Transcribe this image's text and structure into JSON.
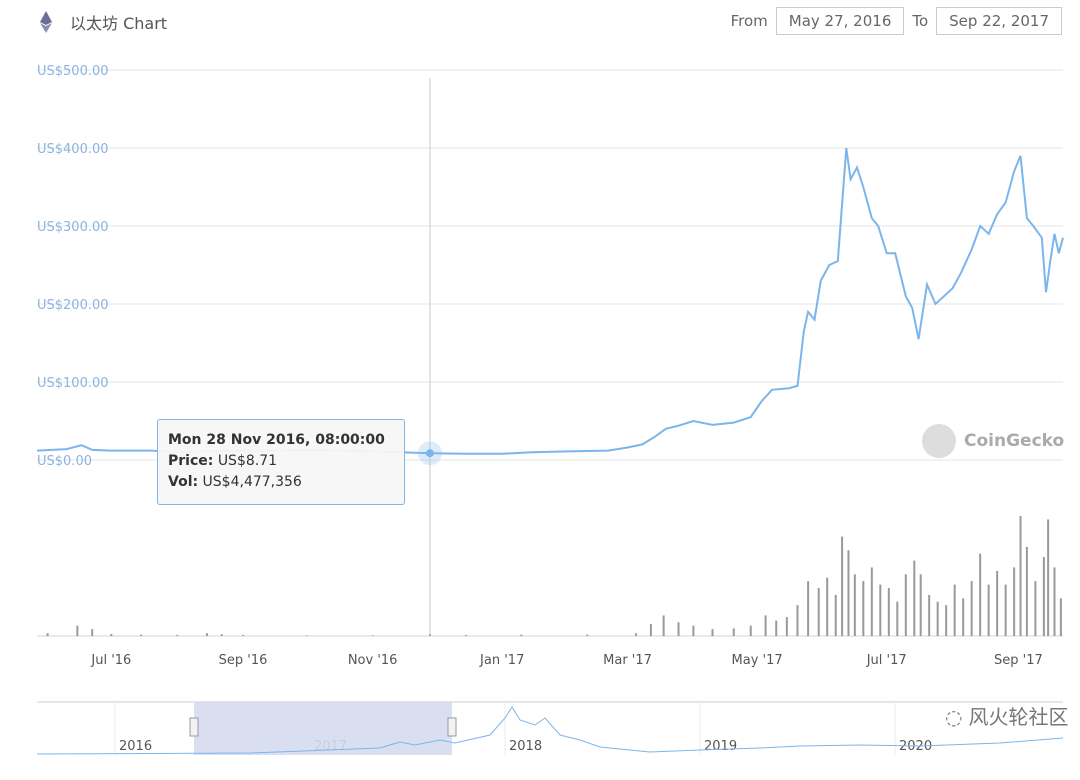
{
  "header": {
    "title": "以太坊 Chart",
    "icon": "ethereum-icon",
    "from_label": "From",
    "from_value": "May 27, 2016",
    "to_label": "To",
    "to_value": "Sep 22, 2017"
  },
  "tooltip": {
    "date": "Mon 28 Nov 2016, 08:00:00",
    "price_label": "Price:",
    "price_value": "US$8.71",
    "vol_label": "Vol:",
    "vol_value": "US$4,477,356"
  },
  "watermark": "CoinGecko",
  "wechat_watermark": "风火轮社区",
  "colors": {
    "line": "#7cb5ec",
    "volume": "#999999",
    "navigator_mask": "#d5dbee"
  },
  "chart_data": {
    "type": "line",
    "title": "",
    "y_ticks": [
      "US$0.00",
      "US$100.00",
      "US$200.00",
      "US$300.00",
      "US$400.00",
      "US$500.00"
    ],
    "ylim": [
      0,
      500
    ],
    "x_ticks": [
      [
        "2016-07-01",
        "Jul '16"
      ],
      [
        "2016-09-01",
        "Sep '16"
      ],
      [
        "2016-11-01",
        "Nov '16"
      ],
      [
        "2017-01-01",
        "Jan '17"
      ],
      [
        "2017-03-01",
        "Mar '17"
      ],
      [
        "2017-05-01",
        "May '17"
      ],
      [
        "2017-07-01",
        "Jul '17"
      ],
      [
        "2017-09-01",
        "Sep '17"
      ]
    ],
    "xlim": [
      "2016-05-27",
      "2017-09-22"
    ],
    "grid": true,
    "crosshair_date": "2016-11-28",
    "price": [
      [
        "2016-05-27",
        12
      ],
      [
        "2016-06-10",
        14
      ],
      [
        "2016-06-17",
        19
      ],
      [
        "2016-06-22",
        13
      ],
      [
        "2016-07-01",
        12
      ],
      [
        "2016-07-20",
        12
      ],
      [
        "2016-08-01",
        10
      ],
      [
        "2016-08-15",
        11
      ],
      [
        "2016-09-01",
        12
      ],
      [
        "2016-09-15",
        12
      ],
      [
        "2016-10-01",
        13
      ],
      [
        "2016-10-20",
        12
      ],
      [
        "2016-11-01",
        11
      ],
      [
        "2016-11-28",
        8.71
      ],
      [
        "2016-12-15",
        8
      ],
      [
        "2017-01-01",
        8
      ],
      [
        "2017-01-15",
        10
      ],
      [
        "2017-02-01",
        11
      ],
      [
        "2017-02-20",
        12
      ],
      [
        "2017-03-01",
        16
      ],
      [
        "2017-03-08",
        20
      ],
      [
        "2017-03-14",
        30
      ],
      [
        "2017-03-19",
        40
      ],
      [
        "2017-03-25",
        44
      ],
      [
        "2017-04-01",
        50
      ],
      [
        "2017-04-10",
        45
      ],
      [
        "2017-04-20",
        48
      ],
      [
        "2017-04-28",
        55
      ],
      [
        "2017-05-03",
        75
      ],
      [
        "2017-05-08",
        90
      ],
      [
        "2017-05-16",
        92
      ],
      [
        "2017-05-20",
        95
      ],
      [
        "2017-05-23",
        165
      ],
      [
        "2017-05-25",
        190
      ],
      [
        "2017-05-28",
        180
      ],
      [
        "2017-05-31",
        230
      ],
      [
        "2017-06-04",
        250
      ],
      [
        "2017-06-08",
        255
      ],
      [
        "2017-06-12",
        400
      ],
      [
        "2017-06-14",
        360
      ],
      [
        "2017-06-17",
        375
      ],
      [
        "2017-06-20",
        350
      ],
      [
        "2017-06-24",
        310
      ],
      [
        "2017-06-27",
        300
      ],
      [
        "2017-07-01",
        265
      ],
      [
        "2017-07-05",
        265
      ],
      [
        "2017-07-10",
        210
      ],
      [
        "2017-07-13",
        195
      ],
      [
        "2017-07-16",
        155
      ],
      [
        "2017-07-20",
        225
      ],
      [
        "2017-07-24",
        200
      ],
      [
        "2017-07-28",
        210
      ],
      [
        "2017-08-01",
        220
      ],
      [
        "2017-08-05",
        240
      ],
      [
        "2017-08-10",
        270
      ],
      [
        "2017-08-14",
        300
      ],
      [
        "2017-08-18",
        290
      ],
      [
        "2017-08-22",
        315
      ],
      [
        "2017-08-26",
        330
      ],
      [
        "2017-08-30",
        370
      ],
      [
        "2017-09-02",
        390
      ],
      [
        "2017-09-05",
        310
      ],
      [
        "2017-09-08",
        300
      ],
      [
        "2017-09-12",
        285
      ],
      [
        "2017-09-14",
        215
      ],
      [
        "2017-09-16",
        255
      ],
      [
        "2017-09-18",
        290
      ],
      [
        "2017-09-20",
        265
      ],
      [
        "2017-09-22",
        285
      ]
    ],
    "volume_usd_millions": [
      [
        "2016-06-01",
        8
      ],
      [
        "2016-06-15",
        30
      ],
      [
        "2016-06-22",
        20
      ],
      [
        "2016-07-01",
        6
      ],
      [
        "2016-07-15",
        4
      ],
      [
        "2016-08-01",
        3
      ],
      [
        "2016-08-15",
        8
      ],
      [
        "2016-08-22",
        5
      ],
      [
        "2016-09-01",
        3
      ],
      [
        "2016-10-01",
        2
      ],
      [
        "2016-11-01",
        2
      ],
      [
        "2016-11-28",
        4.5
      ],
      [
        "2016-12-15",
        3
      ],
      [
        "2017-01-10",
        4
      ],
      [
        "2017-02-10",
        4
      ],
      [
        "2017-03-05",
        8
      ],
      [
        "2017-03-12",
        35
      ],
      [
        "2017-03-18",
        60
      ],
      [
        "2017-03-25",
        40
      ],
      [
        "2017-04-01",
        30
      ],
      [
        "2017-04-10",
        20
      ],
      [
        "2017-04-20",
        22
      ],
      [
        "2017-04-28",
        30
      ],
      [
        "2017-05-05",
        60
      ],
      [
        "2017-05-10",
        45
      ],
      [
        "2017-05-15",
        55
      ],
      [
        "2017-05-20",
        90
      ],
      [
        "2017-05-25",
        160
      ],
      [
        "2017-05-30",
        140
      ],
      [
        "2017-06-03",
        170
      ],
      [
        "2017-06-07",
        120
      ],
      [
        "2017-06-10",
        290
      ],
      [
        "2017-06-13",
        250
      ],
      [
        "2017-06-16",
        180
      ],
      [
        "2017-06-20",
        160
      ],
      [
        "2017-06-24",
        200
      ],
      [
        "2017-06-28",
        150
      ],
      [
        "2017-07-02",
        140
      ],
      [
        "2017-07-06",
        100
      ],
      [
        "2017-07-10",
        180
      ],
      [
        "2017-07-14",
        220
      ],
      [
        "2017-07-17",
        180
      ],
      [
        "2017-07-21",
        120
      ],
      [
        "2017-07-25",
        100
      ],
      [
        "2017-07-29",
        90
      ],
      [
        "2017-08-02",
        150
      ],
      [
        "2017-08-06",
        110
      ],
      [
        "2017-08-10",
        160
      ],
      [
        "2017-08-14",
        240
      ],
      [
        "2017-08-18",
        150
      ],
      [
        "2017-08-22",
        190
      ],
      [
        "2017-08-26",
        150
      ],
      [
        "2017-08-30",
        200
      ],
      [
        "2017-09-02",
        350
      ],
      [
        "2017-09-05",
        260
      ],
      [
        "2017-09-09",
        160
      ],
      [
        "2017-09-13",
        230
      ],
      [
        "2017-09-15",
        340
      ],
      [
        "2017-09-18",
        200
      ],
      [
        "2017-09-21",
        110
      ]
    ],
    "navigator": {
      "year_labels": [
        "2016",
        "2017",
        "2018",
        "2019",
        "2020"
      ],
      "selected_range": [
        "2016-05-27",
        "2017-09-22"
      ]
    }
  }
}
